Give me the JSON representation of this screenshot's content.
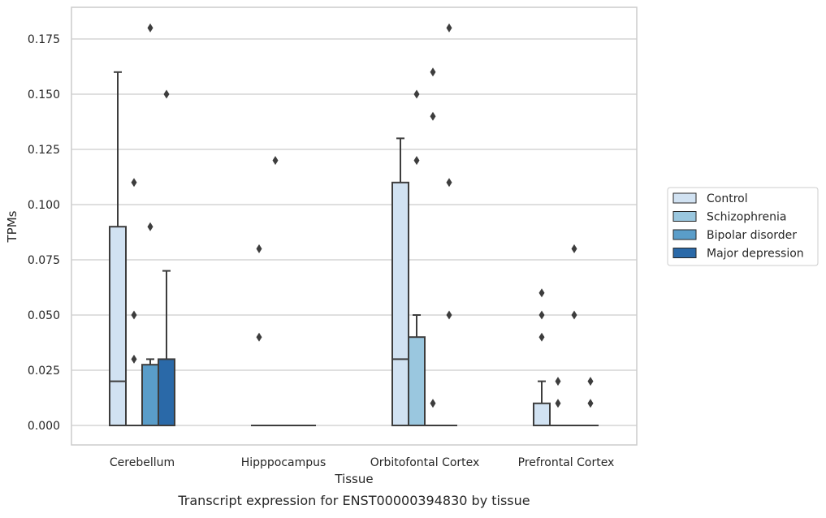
{
  "chart_data": {
    "type": "box",
    "caption": "Transcript expression for ENST00000394830 by tissue",
    "xlabel": "Tissue",
    "ylabel": "TPMs",
    "ylim": [
      -0.009,
      0.19
    ],
    "y_ticks": [
      "0.000",
      "0.025",
      "0.050",
      "0.075",
      "0.100",
      "0.125",
      "0.150",
      "0.175"
    ],
    "y_tick_values": [
      0,
      0.025,
      0.05,
      0.075,
      0.1,
      0.125,
      0.15,
      0.175
    ],
    "grid": "horizontal",
    "legend_position": "right",
    "categories": [
      "Cerebellum",
      "Hipppocampus",
      "Orbitofontal Cortex",
      "Prefrontal Cortex"
    ],
    "series": [
      {
        "name": "Control",
        "color": "#d1e2f2",
        "boxes": [
          {
            "q1": 0,
            "median": 0.02,
            "q3": 0.09,
            "whisker_low": 0,
            "whisker_high": 0.16,
            "outliers": []
          },
          {
            "q1": 0,
            "median": 0,
            "q3": 0,
            "whisker_low": 0,
            "whisker_high": 0,
            "outliers": [
              0.04,
              0.08
            ]
          },
          {
            "q1": 0,
            "median": 0.03,
            "q3": 0.11,
            "whisker_low": 0,
            "whisker_high": 0.13,
            "outliers": []
          },
          {
            "q1": 0,
            "median": 0,
            "q3": 0.01,
            "whisker_low": 0,
            "whisker_high": 0.02,
            "outliers": [
              0.04,
              0.05,
              0.06
            ]
          }
        ]
      },
      {
        "name": "Schizophrenia",
        "color": "#9ac7df",
        "boxes": [
          {
            "q1": 0,
            "median": 0,
            "q3": 0,
            "whisker_low": 0,
            "whisker_high": 0,
            "outliers": [
              0.03,
              0.05,
              0.11
            ]
          },
          {
            "q1": 0,
            "median": 0,
            "q3": 0,
            "whisker_low": 0,
            "whisker_high": 0,
            "outliers": [
              0.12
            ]
          },
          {
            "q1": 0,
            "median": 0,
            "q3": 0.04,
            "whisker_low": 0,
            "whisker_high": 0.05,
            "outliers": [
              0.12,
              0.15
            ]
          },
          {
            "q1": 0,
            "median": 0,
            "q3": 0,
            "whisker_low": 0,
            "whisker_high": 0,
            "outliers": [
              0.01,
              0.02
            ]
          }
        ]
      },
      {
        "name": "Bipolar disorder",
        "color": "#5a9dc9",
        "boxes": [
          {
            "q1": 0,
            "median": 0,
            "q3": 0.0275,
            "whisker_low": 0,
            "whisker_high": 0.03,
            "outliers": [
              0.09,
              0.18
            ]
          },
          {
            "q1": 0,
            "median": 0,
            "q3": 0,
            "whisker_low": 0,
            "whisker_high": 0,
            "outliers": []
          },
          {
            "q1": 0,
            "median": 0,
            "q3": 0,
            "whisker_low": 0,
            "whisker_high": 0,
            "outliers": [
              0.01,
              0.14,
              0.16
            ]
          },
          {
            "q1": 0,
            "median": 0,
            "q3": 0,
            "whisker_low": 0,
            "whisker_high": 0,
            "outliers": [
              0.05,
              0.08
            ]
          }
        ]
      },
      {
        "name": "Major depression",
        "color": "#2a69a8",
        "boxes": [
          {
            "q1": 0,
            "median": 0,
            "q3": 0.03,
            "whisker_low": 0,
            "whisker_high": 0.07,
            "outliers": [
              0.15
            ]
          },
          {
            "q1": 0,
            "median": 0,
            "q3": 0,
            "whisker_low": 0,
            "whisker_high": 0,
            "outliers": []
          },
          {
            "q1": 0,
            "median": 0,
            "q3": 0,
            "whisker_low": 0,
            "whisker_high": 0,
            "outliers": [
              0.05,
              0.11,
              0.18
            ]
          },
          {
            "q1": 0,
            "median": 0,
            "q3": 0,
            "whisker_low": 0,
            "whisker_high": 0,
            "outliers": [
              0.01,
              0.02
            ]
          }
        ]
      }
    ]
  }
}
